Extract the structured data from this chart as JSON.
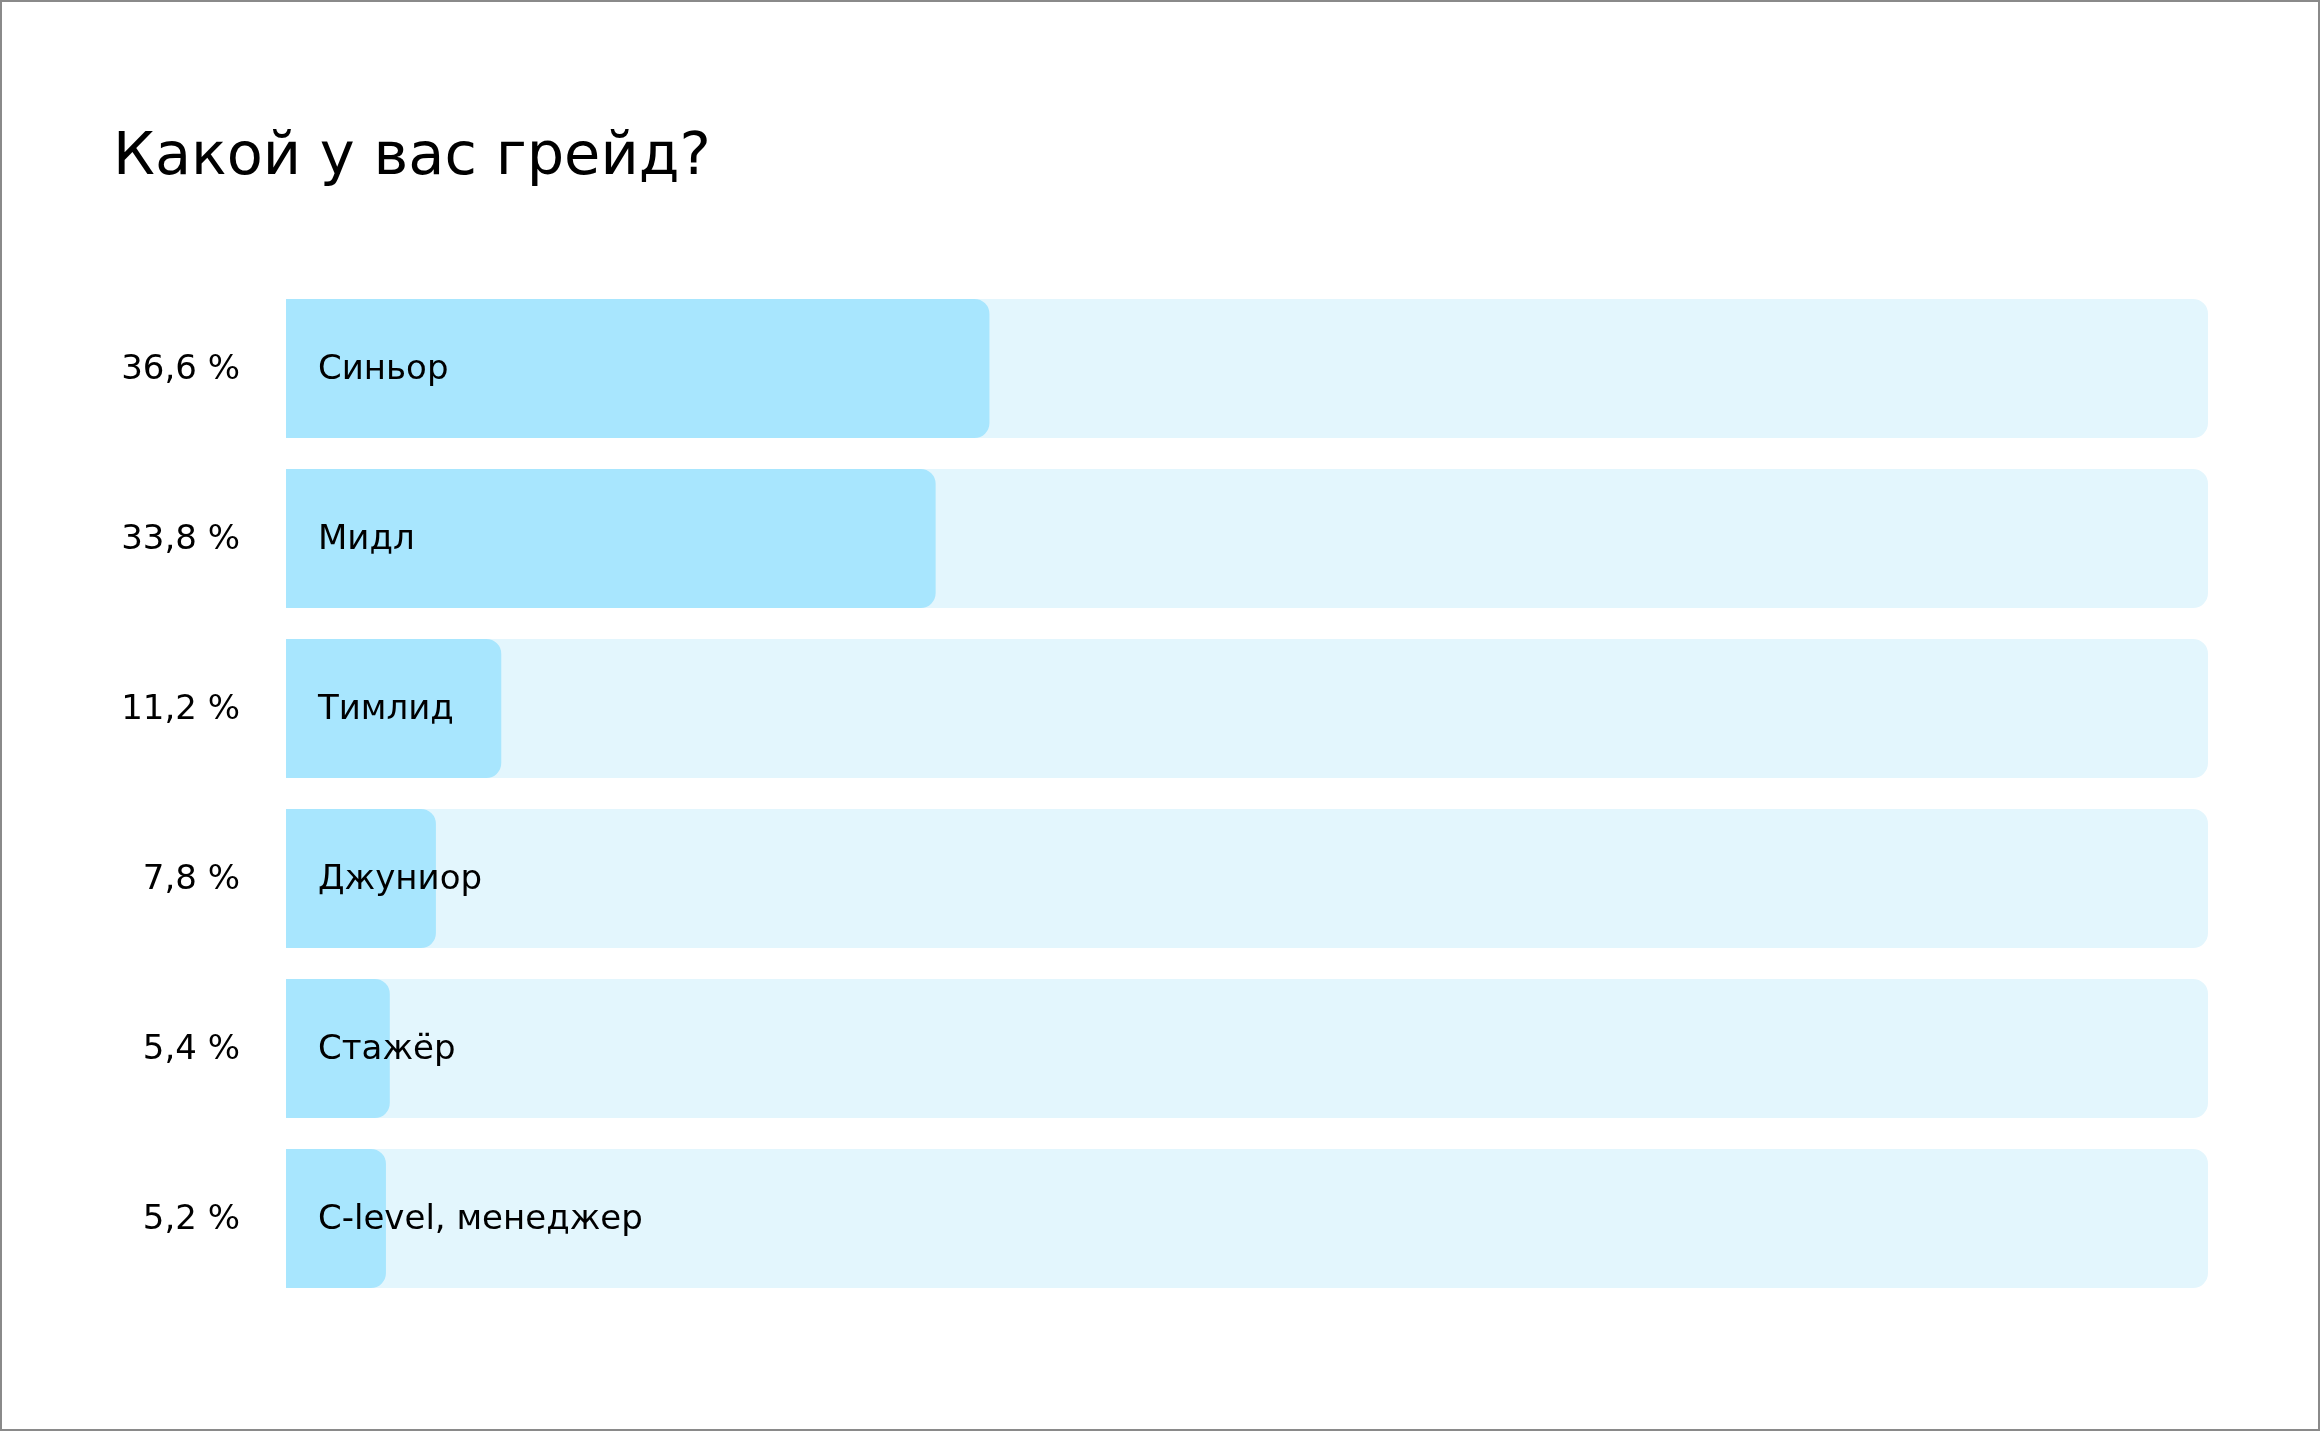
{
  "chart_data": {
    "type": "bar",
    "orientation": "horizontal",
    "title": "Какой у вас грейд?",
    "categories": [
      "Синьор",
      "Мидл",
      "Тимлид",
      "Джуниор",
      "Стажёр",
      "C-level, менеджер"
    ],
    "values": [
      36.6,
      33.8,
      11.2,
      7.8,
      5.4,
      5.2
    ],
    "value_labels": [
      "36,6 %",
      "33,8 %",
      "11,2 %",
      "7,8 %",
      "5,4 %",
      "5,2 %"
    ],
    "color": "#a8e6fe",
    "xlim": [
      0,
      100
    ],
    "legend": false,
    "tick_labels": "y"
  }
}
